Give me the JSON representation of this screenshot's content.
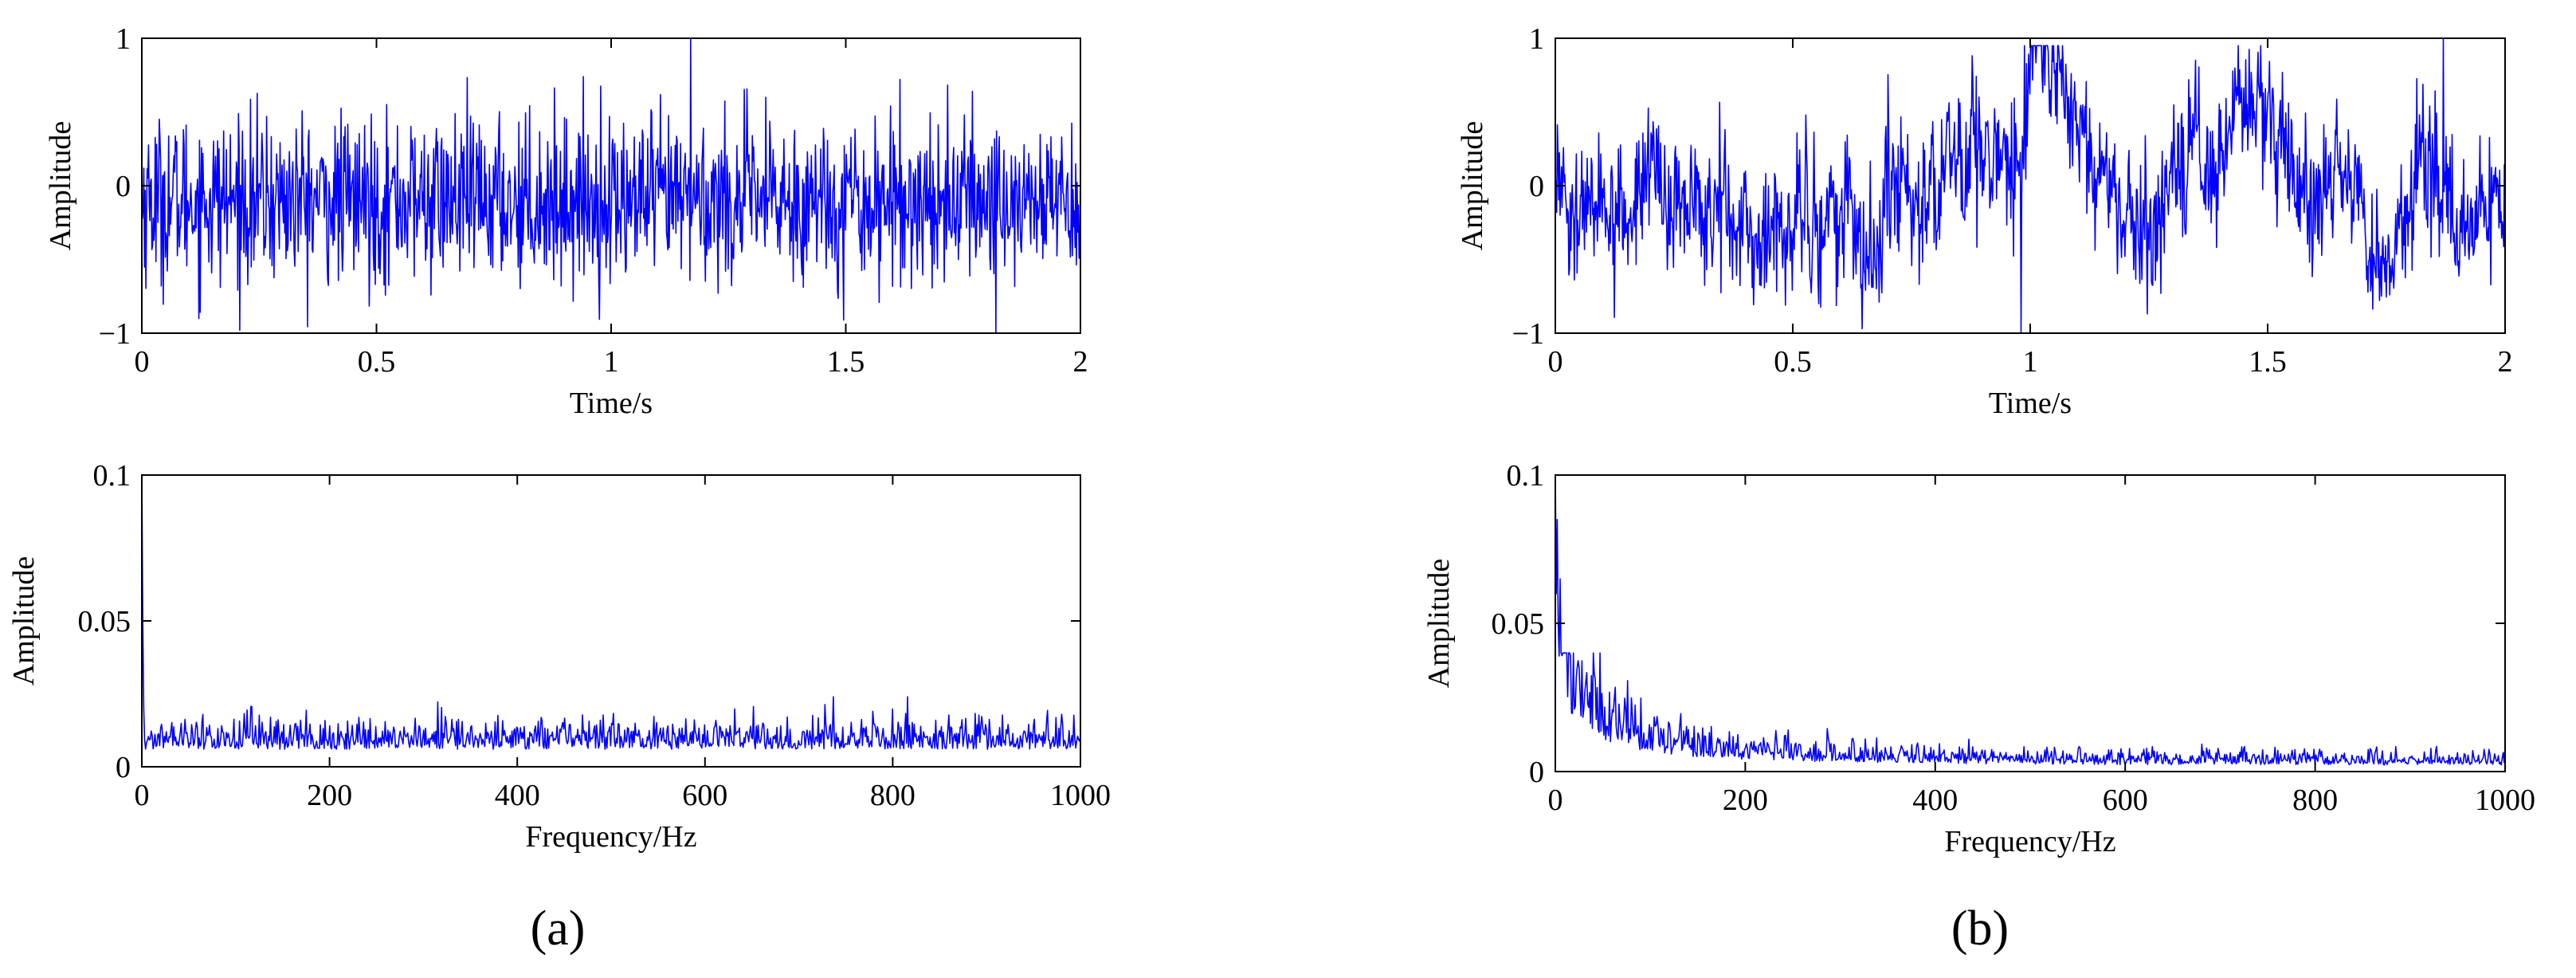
{
  "chart_data": [
    {
      "panel": "a",
      "type": "line",
      "title": "",
      "xlabel": "Time/s",
      "ylabel": "Amplitude",
      "xlim": [
        0,
        2
      ],
      "ylim": [
        -1,
        1
      ],
      "xticks": [
        0,
        0.5,
        1,
        1.5,
        2
      ],
      "xtick_labels": [
        "0",
        "0.5",
        "1",
        "1.5",
        "2"
      ],
      "yticks": [
        -1,
        0,
        1
      ],
      "ytick_labels": [
        "−1",
        "0",
        "1"
      ],
      "grid": false,
      "series": [
        {
          "color": "#0000ff",
          "points": 1400,
          "mean": -0.1,
          "spread": 0.28,
          "max": 1.0,
          "min": -1.0,
          "max_at": 1.17,
          "min_at": 1.82
        }
      ]
    },
    {
      "panel": "a",
      "type": "line",
      "title": "",
      "xlabel": "Frequency/Hz",
      "ylabel": "Amplitude",
      "xlim": [
        0,
        1000
      ],
      "ylim": [
        0,
        0.1
      ],
      "xticks": [
        0,
        200,
        400,
        600,
        800,
        1000
      ],
      "xtick_labels": [
        "0",
        "200",
        "400",
        "600",
        "800",
        "1000"
      ],
      "yticks": [
        0,
        0.05,
        0.1
      ],
      "ytick_labels": [
        "0",
        "0.05",
        "0.1"
      ],
      "grid": false,
      "series": [
        {
          "color": "#0000ff",
          "points": 1000,
          "floor": 0.008,
          "peak_at_zero": 0.1,
          "max_noise": 0.024
        }
      ]
    },
    {
      "panel": "b",
      "type": "line",
      "title": "",
      "xlabel": "Time/s",
      "ylabel": "Amplitude",
      "xlim": [
        0,
        2
      ],
      "ylim": [
        -1,
        1
      ],
      "xticks": [
        0,
        0.5,
        1,
        1.5,
        2
      ],
      "xtick_labels": [
        "0",
        "0.5",
        "1",
        "1.5",
        "2"
      ],
      "yticks": [
        -1,
        0,
        1
      ],
      "ytick_labels": [
        "−1",
        "0",
        "1"
      ],
      "grid": false,
      "series": [
        {
          "color": "#0000ff",
          "points": 1400,
          "mean": 0.0,
          "spread": 0.22,
          "max": 1.0,
          "min": -1.0,
          "max_at": 1.87,
          "min_at": 0.98
        }
      ]
    },
    {
      "panel": "b",
      "type": "line",
      "title": "",
      "xlabel": "Frequency/Hz",
      "ylabel": "Amplitude",
      "xlim": [
        0,
        1000
      ],
      "ylim": [
        0,
        0.1
      ],
      "xticks": [
        0,
        200,
        400,
        600,
        800,
        1000
      ],
      "xtick_labels": [
        "0",
        "200",
        "400",
        "600",
        "800",
        "1000"
      ],
      "yticks": [
        0,
        0.05,
        0.1
      ],
      "ytick_labels": [
        "0",
        "0.05",
        "0.1"
      ],
      "grid": false,
      "series": [
        {
          "color": "#0000ff",
          "points": 1000,
          "peak_at_zero": 0.1,
          "decay_to": 0.004,
          "max_noise": 0.04
        }
      ]
    }
  ],
  "panel_labels": {
    "a": "(a)",
    "b": "(b)"
  }
}
